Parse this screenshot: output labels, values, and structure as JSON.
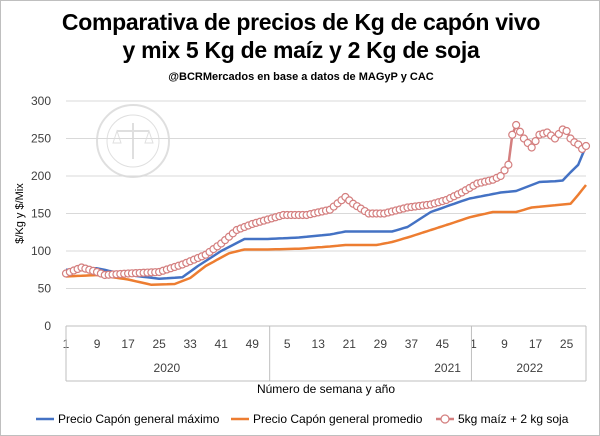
{
  "chart_data": {
    "type": "line",
    "title": "Comparativa de precios de Kg de capón vivo",
    "subtitle": "y mix 5 Kg de maíz y 2 Kg de soja",
    "credit": "@BCRMercados  en base a datos de MAGyP y CAC",
    "xlabel": "Número de semana y año",
    "ylabel": "$/Kg y $/Mix",
    "ylim": [
      0,
      300
    ],
    "yticks": [
      0,
      50,
      100,
      150,
      200,
      250,
      300
    ],
    "grid": true,
    "legend": "bottom",
    "x_ticks": [
      {
        "idx": 0,
        "label": "1"
      },
      {
        "idx": 8,
        "label": "9"
      },
      {
        "idx": 16,
        "label": "17"
      },
      {
        "idx": 24,
        "label": "25"
      },
      {
        "idx": 32,
        "label": "33"
      },
      {
        "idx": 40,
        "label": "41"
      },
      {
        "idx": 48,
        "label": "49"
      },
      {
        "idx": 57,
        "label": "5"
      },
      {
        "idx": 65,
        "label": "13"
      },
      {
        "idx": 73,
        "label": "21"
      },
      {
        "idx": 81,
        "label": "29"
      },
      {
        "idx": 89,
        "label": "37"
      },
      {
        "idx": 97,
        "label": "45"
      },
      {
        "idx": 105,
        "label": "1"
      },
      {
        "idx": 113,
        "label": "9"
      },
      {
        "idx": 121,
        "label": "17"
      },
      {
        "idx": 129,
        "label": "25"
      }
    ],
    "x_groups": [
      {
        "label": "2020",
        "start": 0,
        "end": 52
      },
      {
        "label": "2021",
        "start": 53,
        "end": 104
      },
      {
        "label": "2022",
        "start": 105,
        "end": 134
      }
    ],
    "series": [
      {
        "name": "Precio Capón general máximo",
        "color": "#4472c4",
        "marker": false,
        "anchors": [
          [
            0,
            75
          ],
          [
            8,
            77
          ],
          [
            16,
            68
          ],
          [
            24,
            63
          ],
          [
            30,
            65
          ],
          [
            34,
            80
          ],
          [
            40,
            100
          ],
          [
            46,
            116
          ],
          [
            52,
            116
          ],
          [
            60,
            118
          ],
          [
            68,
            122
          ],
          [
            72,
            126
          ],
          [
            84,
            126
          ],
          [
            88,
            132
          ],
          [
            94,
            152
          ],
          [
            100,
            163
          ],
          [
            104,
            170
          ],
          [
            112,
            178
          ],
          [
            116,
            180
          ],
          [
            122,
            192
          ],
          [
            126,
            193
          ],
          [
            128,
            194
          ],
          [
            130,
            205
          ],
          [
            132,
            215
          ],
          [
            134,
            240
          ]
        ]
      },
      {
        "name": "Precio Capón general promedio",
        "color": "#ed7d31",
        "marker": false,
        "anchors": [
          [
            0,
            66
          ],
          [
            8,
            68
          ],
          [
            16,
            62
          ],
          [
            22,
            55
          ],
          [
            28,
            56
          ],
          [
            32,
            64
          ],
          [
            36,
            80
          ],
          [
            42,
            97
          ],
          [
            46,
            102
          ],
          [
            52,
            102
          ],
          [
            60,
            103
          ],
          [
            68,
            106
          ],
          [
            72,
            108
          ],
          [
            80,
            108
          ],
          [
            84,
            112
          ],
          [
            88,
            118
          ],
          [
            94,
            128
          ],
          [
            100,
            138
          ],
          [
            104,
            145
          ],
          [
            110,
            152
          ],
          [
            116,
            152
          ],
          [
            120,
            158
          ],
          [
            124,
            160
          ],
          [
            126,
            161
          ],
          [
            128,
            162
          ],
          [
            130,
            163
          ],
          [
            132,
            175
          ],
          [
            134,
            188
          ]
        ]
      },
      {
        "name": "5kg maíz + 2 kg soja",
        "color": "#d47f7f",
        "marker": true,
        "anchors": [
          [
            0,
            70
          ],
          [
            4,
            78
          ],
          [
            8,
            72
          ],
          [
            10,
            68
          ],
          [
            16,
            70
          ],
          [
            24,
            72
          ],
          [
            30,
            82
          ],
          [
            36,
            95
          ],
          [
            40,
            110
          ],
          [
            44,
            128
          ],
          [
            48,
            136
          ],
          [
            52,
            142
          ],
          [
            56,
            148
          ],
          [
            62,
            148
          ],
          [
            68,
            155
          ],
          [
            72,
            172
          ],
          [
            74,
            163
          ],
          [
            78,
            150
          ],
          [
            82,
            150
          ],
          [
            88,
            158
          ],
          [
            94,
            162
          ],
          [
            98,
            168
          ],
          [
            102,
            178
          ],
          [
            106,
            190
          ],
          [
            110,
            195
          ],
          [
            112,
            200
          ],
          [
            114,
            215
          ],
          [
            115,
            255
          ],
          [
            116,
            268
          ],
          [
            118,
            250
          ],
          [
            120,
            238
          ],
          [
            122,
            255
          ],
          [
            124,
            258
          ],
          [
            126,
            250
          ],
          [
            128,
            262
          ],
          [
            129,
            260
          ],
          [
            130,
            250
          ],
          [
            131,
            245
          ],
          [
            132,
            242
          ],
          [
            133,
            236
          ],
          [
            134,
            240
          ]
        ]
      }
    ]
  }
}
